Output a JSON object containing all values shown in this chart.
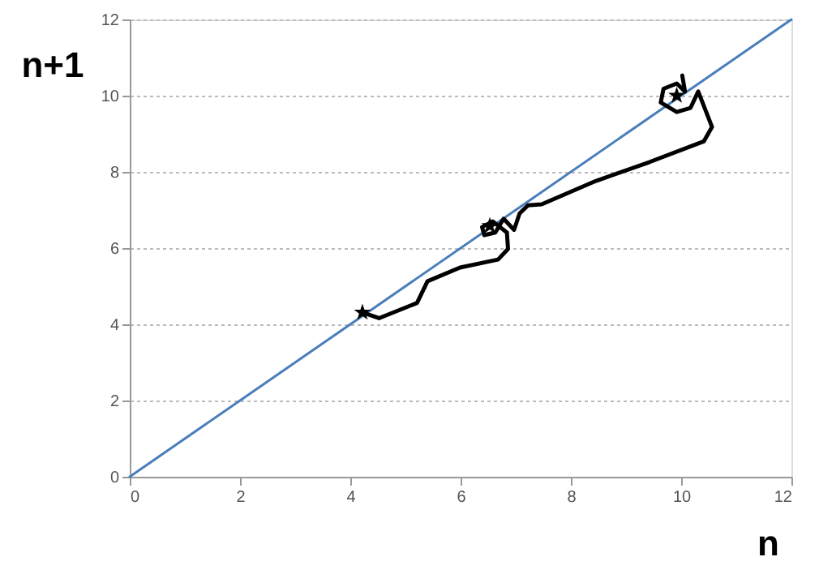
{
  "chart_data": {
    "type": "line",
    "xlabel": "n",
    "ylabel": "n+1",
    "xlim": [
      0,
      12
    ],
    "ylim": [
      0,
      12
    ],
    "xticks": [
      0,
      2,
      4,
      6,
      8,
      10,
      12
    ],
    "yticks": [
      0,
      2,
      4,
      6,
      8,
      10,
      12
    ],
    "grid": "y",
    "series": [
      {
        "color": "#4a7ebb",
        "marker": "none",
        "line_style": "solid",
        "x": [
          0,
          12
        ],
        "values": [
          0,
          12
        ]
      },
      {
        "color": "#000000",
        "marker": "none",
        "line_style": "solid",
        "x": [
          4.22,
          4.52,
          5.21,
          5.4,
          5.99,
          6.68,
          6.86,
          6.84,
          6.58,
          6.39,
          6.43,
          6.63,
          6.78,
          6.97,
          7.07,
          7.22,
          7.47,
          8.45,
          9.43,
          10.41,
          10.56,
          10.31,
          10.17,
          9.92,
          9.63,
          9.68,
          9.92,
          10.07,
          10.02
        ],
        "values": [
          4.31,
          4.16,
          4.56,
          5.13,
          5.49,
          5.7,
          5.98,
          6.41,
          6.7,
          6.55,
          6.34,
          6.41,
          6.77,
          6.48,
          6.91,
          7.12,
          7.15,
          7.76,
          8.26,
          8.8,
          9.18,
          10.11,
          9.68,
          9.57,
          9.82,
          10.18,
          10.32,
          10.11,
          10.53
        ]
      },
      {
        "type": "scatter",
        "color": "#000000",
        "marker": "star",
        "x": [
          4.22,
          6.53,
          9.92
        ],
        "values": [
          4.31,
          6.58,
          10.0
        ]
      }
    ]
  }
}
